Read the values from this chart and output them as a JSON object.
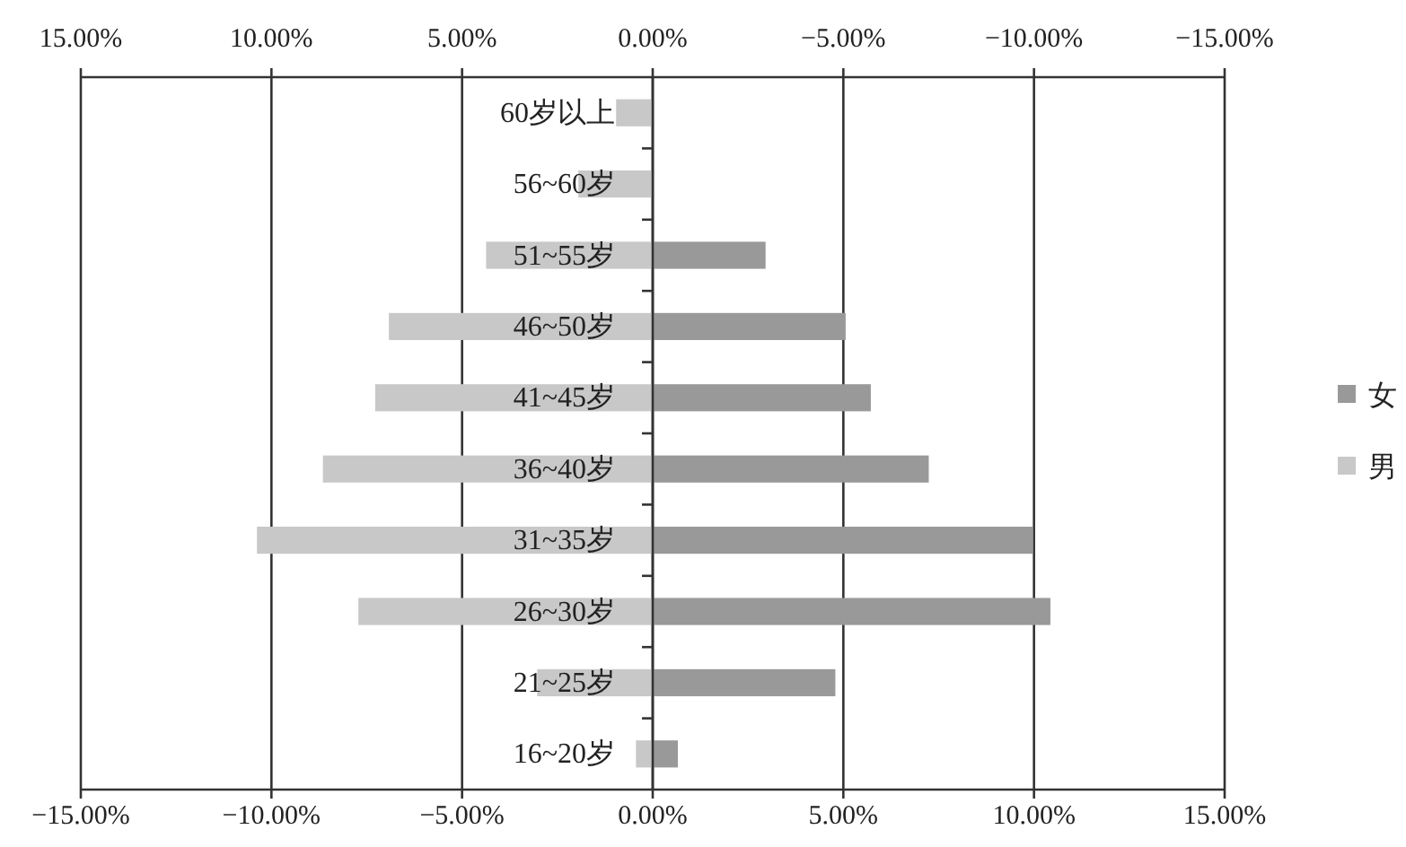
{
  "chart_data": {
    "type": "bar",
    "orientation": "horizontal",
    "stacked": true,
    "categories": [
      "60岁以上",
      "56~60岁",
      "51~55岁",
      "46~50岁",
      "41~45岁",
      "36~40岁",
      "31~35岁",
      "26~30岁",
      "21~25岁",
      "16~20岁"
    ],
    "series": [
      {
        "name": "女",
        "color": "#999999",
        "values": [
          0,
          0,
          2.96,
          5.06,
          5.72,
          7.24,
          9.97,
          10.43,
          4.79,
          0.66
        ]
      },
      {
        "name": "男",
        "color": "#c8c8c8",
        "values": [
          -0.96,
          -1.95,
          -4.37,
          -6.92,
          -7.28,
          -8.65,
          -10.38,
          -7.72,
          -3.03,
          -0.44
        ]
      }
    ],
    "xlim": [
      -15,
      15
    ],
    "xticks": [
      {
        "value": -15,
        "label": "−15.00%"
      },
      {
        "value": -10,
        "label": "−10.00%"
      },
      {
        "value": -5,
        "label": "−5.00%"
      },
      {
        "value": 0,
        "label": "0.00%"
      },
      {
        "value": 5,
        "label": "5.00%"
      },
      {
        "value": 10,
        "label": "10.00%"
      },
      {
        "value": 15,
        "label": "15.00%"
      }
    ],
    "x2lim": [
      15,
      -15
    ],
    "x2ticks": [
      {
        "value": 15,
        "label": "15.00%"
      },
      {
        "value": 10,
        "label": "10.00%"
      },
      {
        "value": 5,
        "label": "5.00%"
      },
      {
        "value": 0,
        "label": "0.00%"
      },
      {
        "value": -5,
        "label": "−5.00%"
      },
      {
        "value": -10,
        "label": "−10.00%"
      },
      {
        "value": -15,
        "label": "−15.00%"
      }
    ],
    "grid": "x",
    "legend": "right"
  }
}
